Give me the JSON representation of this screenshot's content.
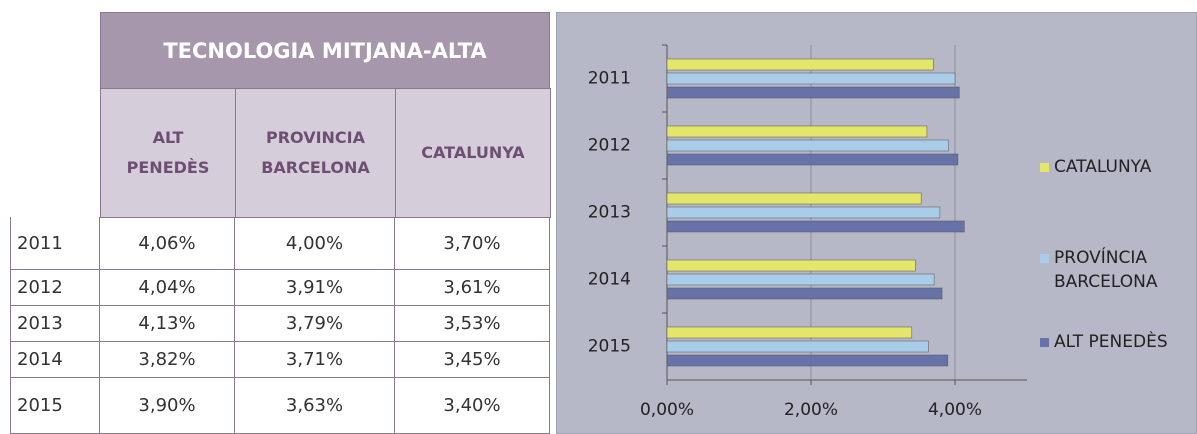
{
  "table": {
    "title": "TECNOLOGIA MITJANA-ALTA",
    "columns": [
      "ALT PENEDÈS",
      "PROVINCIA BARCELONA",
      "CATALUNYA"
    ],
    "rows": [
      [
        "2011",
        "4,06%",
        "4,00%",
        "3,70%"
      ],
      [
        "2012",
        "4,04%",
        "3,91%",
        "3,61%"
      ],
      [
        "2013",
        "4,13%",
        "3,79%",
        "3,53%"
      ],
      [
        "2014",
        "3,82%",
        "3,71%",
        "3,45%"
      ],
      [
        "2015",
        "3,90%",
        "3,63%",
        "3,40%"
      ]
    ]
  },
  "chart_data": {
    "type": "barh",
    "categories": [
      "2011",
      "2012",
      "2013",
      "2014",
      "2015"
    ],
    "series": [
      {
        "name": "CATALUNYA",
        "color": "#e3e66a",
        "values": [
          3.7,
          3.61,
          3.53,
          3.45,
          3.4
        ]
      },
      {
        "name": "PROVÍNCIA BARCELONA",
        "color": "#a9cde8",
        "values": [
          4.0,
          3.91,
          3.79,
          3.71,
          3.63
        ]
      },
      {
        "name": "ALT PENEDÈS",
        "color": "#6672a8",
        "values": [
          4.06,
          4.04,
          4.13,
          3.82,
          3.9
        ]
      }
    ],
    "xlim": [
      0,
      5
    ],
    "xticks": [
      {
        "value": 0,
        "label": "0,00%"
      },
      {
        "value": 2,
        "label": "2,00%"
      },
      {
        "value": 4,
        "label": "4,00%"
      }
    ],
    "grid": true,
    "legend": "right"
  }
}
